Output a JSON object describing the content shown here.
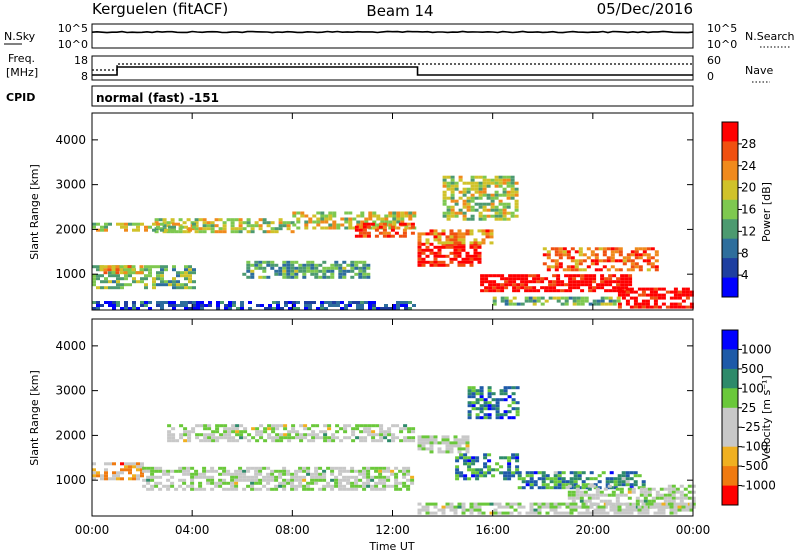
{
  "header": {
    "station": "Kerguelen (fitACF)",
    "beam": "Beam 14",
    "date": "05/Dec/2016"
  },
  "top_panels": {
    "nsky_label": "N.Sky",
    "nsearch_label": "N.Search",
    "freq_label_line1": "Freq.",
    "freq_label_line2": "[MHz]",
    "nave_label": "Nave",
    "cpid_label": "CPID",
    "cpid_text": "normal (fast) -151",
    "noise_left_ticks": [
      "10^5",
      "10^0"
    ],
    "noise_right_ticks": [
      "10^5",
      "10^0"
    ],
    "freq_left_ticks": [
      "18",
      "8"
    ],
    "freq_right_ticks": [
      "60",
      "0"
    ]
  },
  "colors": {
    "power_scale": [
      "#0000ff",
      "#1e3fa0",
      "#2e6e9c",
      "#4c9a70",
      "#7ec850",
      "#d0c22a",
      "#f08a1c",
      "#f05010",
      "#ff0000"
    ],
    "velocity_scale": [
      "#0000ff",
      "#1e5aa8",
      "#2e8a6a",
      "#6ac83a",
      "#c8c8c8",
      "#c8c8c8",
      "#f0b020",
      "#f07a10",
      "#ff0000"
    ]
  },
  "chart_data": [
    {
      "type": "heatmap",
      "name": "power",
      "ylabel": "Slant Range [km]",
      "yticks": [
        "1000",
        "2000",
        "3000",
        "4000"
      ],
      "ylim": [
        200,
        4600
      ],
      "colorbar_label": "Power [dB]",
      "colorbar_ticks": [
        "4",
        "8",
        "12",
        "16",
        "20",
        "24",
        "28"
      ],
      "bands": [
        {
          "t0": 0.0,
          "t1": 4.0,
          "r0": 700,
          "r1": 1200,
          "level": 0.45
        },
        {
          "t0": 0.3,
          "t1": 2.0,
          "r0": 1000,
          "r1": 1200,
          "level": 0.7
        },
        {
          "t0": 2.5,
          "t1": 8.0,
          "r0": 1950,
          "r1": 2250,
          "level": 0.55
        },
        {
          "t0": 6.0,
          "t1": 11.0,
          "r0": 900,
          "r1": 1300,
          "level": 0.4
        },
        {
          "t0": 8.0,
          "t1": 12.8,
          "r0": 2050,
          "r1": 2400,
          "level": 0.6
        },
        {
          "t0": 10.5,
          "t1": 12.8,
          "r0": 1850,
          "r1": 2150,
          "level": 0.85
        },
        {
          "t0": 0.0,
          "t1": 4.0,
          "r0": 1950,
          "r1": 2150,
          "level": 0.55
        },
        {
          "t0": 13.0,
          "t1": 15.5,
          "r0": 1200,
          "r1": 1700,
          "level": 0.95
        },
        {
          "t0": 13.0,
          "t1": 16.0,
          "r0": 1700,
          "r1": 2000,
          "level": 0.75
        },
        {
          "t0": 14.0,
          "t1": 17.0,
          "r0": 2200,
          "r1": 3200,
          "level": 0.55
        },
        {
          "t0": 15.5,
          "t1": 21.5,
          "r0": 600,
          "r1": 1000,
          "level": 1.0
        },
        {
          "t0": 18.0,
          "t1": 22.5,
          "r0": 1100,
          "r1": 1600,
          "level": 0.8
        },
        {
          "t0": 21.0,
          "t1": 24.0,
          "r0": 250,
          "r1": 700,
          "level": 1.0
        },
        {
          "t0": 16.0,
          "t1": 21.0,
          "r0": 300,
          "r1": 500,
          "level": 0.45
        },
        {
          "t0": 0.0,
          "t1": 12.8,
          "r0": 250,
          "r1": 400,
          "level": 0.2
        }
      ]
    },
    {
      "type": "heatmap",
      "name": "velocity",
      "ylabel": "Slant Range [km]",
      "yticks": [
        "1000",
        "2000",
        "3000",
        "4000"
      ],
      "ylim": [
        200,
        4600
      ],
      "colorbar_label": "Velocity [m s⁻¹]",
      "colorbar_ticks": [
        "1000",
        "500",
        "100",
        "25",
        "-25",
        "-100",
        "-500",
        "-1000"
      ],
      "xlabel": "Time UT",
      "xticks": [
        "00:00",
        "04:00",
        "08:00",
        "12:00",
        "16:00",
        "20:00",
        "00:00"
      ],
      "xlim": [
        0,
        24
      ],
      "bands": [
        {
          "t0": 0.0,
          "t1": 2.0,
          "r0": 1000,
          "r1": 1400,
          "level": 0.72
        },
        {
          "t0": 2.0,
          "t1": 12.8,
          "r0": 800,
          "r1": 1300,
          "level": 0.5
        },
        {
          "t0": 3.0,
          "t1": 12.8,
          "r0": 1850,
          "r1": 2250,
          "level": 0.5
        },
        {
          "t0": 13.0,
          "t1": 15.0,
          "r0": 1600,
          "r1": 2000,
          "level": 0.5
        },
        {
          "t0": 14.5,
          "t1": 17.0,
          "r0": 1000,
          "r1": 1600,
          "level": 0.25
        },
        {
          "t0": 17.0,
          "t1": 22.0,
          "r0": 800,
          "r1": 1200,
          "level": 0.28
        },
        {
          "t0": 15.0,
          "t1": 17.0,
          "r0": 2400,
          "r1": 3100,
          "level": 0.25
        },
        {
          "t0": 19.0,
          "t1": 24.0,
          "r0": 400,
          "r1": 900,
          "level": 0.5
        },
        {
          "t0": 13.0,
          "t1": 24.0,
          "r0": 250,
          "r1": 500,
          "level": 0.5
        }
      ]
    }
  ]
}
